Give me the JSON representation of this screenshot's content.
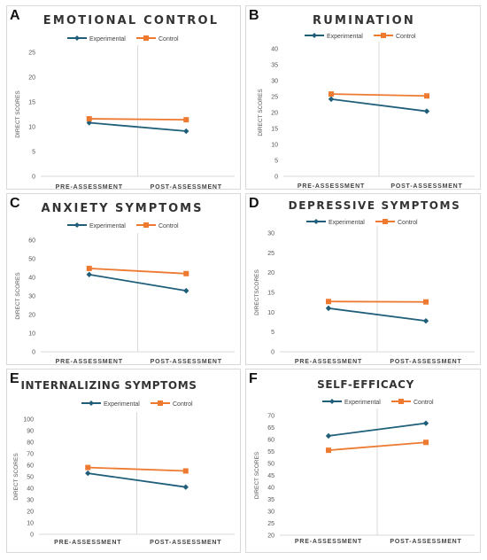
{
  "legend_labels": {
    "experimental": "Experimental",
    "control": "Control"
  },
  "colors": {
    "experimental": "#1f5f7a",
    "control": "#ee7a32",
    "axis_text": "#555555",
    "gridline": "#d9d9d9"
  },
  "panels": [
    {
      "letter": "A"
    },
    {
      "letter": "B"
    },
    {
      "letter": "C"
    },
    {
      "letter": "D"
    },
    {
      "letter": "E"
    },
    {
      "letter": "F"
    }
  ],
  "chart_data": [
    {
      "type": "line",
      "title": "EMOTIONAL CONTROL",
      "ylabel": "DIRECT SCORES",
      "categories": [
        "PRE-ASSESSMENT",
        "POST-ASSESSMENT"
      ],
      "ylim": [
        0,
        25
      ],
      "yticks": [
        "0",
        "5",
        "10",
        "15",
        "20",
        "25"
      ],
      "series": [
        {
          "name": "Experimental",
          "values": [
            10.8,
            9.1
          ]
        },
        {
          "name": "Control",
          "values": [
            11.6,
            11.4
          ]
        }
      ]
    },
    {
      "type": "line",
      "title": "RUMINATION",
      "ylabel": "DIRECT SCORES",
      "categories": [
        "PRE-ASSESSMENT",
        "POST-ASSESSMENT"
      ],
      "ylim": [
        0,
        40
      ],
      "yticks": [
        "0",
        "5",
        "10",
        "15",
        "20",
        "25",
        "30",
        "35",
        "40"
      ],
      "series": [
        {
          "name": "Experimental",
          "values": [
            24.2,
            20.4
          ]
        },
        {
          "name": "Control",
          "values": [
            25.8,
            25.2
          ]
        }
      ]
    },
    {
      "type": "line",
      "title": "ANXIETY SYMPTOMS",
      "ylabel": "DIRECT SCORES",
      "categories": [
        "PRE-ASSESSMENT",
        "POST-ASSESSMENT"
      ],
      "ylim": [
        0,
        60
      ],
      "yticks": [
        "0",
        "10",
        "20",
        "30",
        "40",
        "50",
        "60"
      ],
      "series": [
        {
          "name": "Experimental",
          "values": [
            41.5,
            32.8
          ]
        },
        {
          "name": "Control",
          "values": [
            44.8,
            42.0
          ]
        }
      ]
    },
    {
      "type": "line",
      "title": "DEPRESSIVE SYMPTOMS",
      "ylabel": "DIRECTSCORES",
      "categories": [
        "PRE-ASSESSMENT",
        "POST-ASSESSMENT"
      ],
      "ylim": [
        0,
        30
      ],
      "yticks": [
        "0",
        "5",
        "10",
        "15",
        "20",
        "25",
        "30"
      ],
      "series": [
        {
          "name": "Experimental",
          "values": [
            11.0,
            7.8
          ]
        },
        {
          "name": "Control",
          "values": [
            12.7,
            12.6
          ]
        }
      ]
    },
    {
      "type": "line",
      "title": "INTERNALIZING SYMPTOMS",
      "ylabel": "DIRECT SCORES",
      "categories": [
        "PRE-ASSESSMENT",
        "POST-ASSESSMENT"
      ],
      "ylim": [
        0,
        100
      ],
      "yticks": [
        "0",
        "10",
        "20",
        "30",
        "40",
        "50",
        "60",
        "70",
        "80",
        "90",
        "100"
      ],
      "series": [
        {
          "name": "Experimental",
          "values": [
            53.0,
            41.0
          ]
        },
        {
          "name": "Control",
          "values": [
            58.0,
            55.0
          ]
        }
      ]
    },
    {
      "type": "line",
      "title": "SELF-EFFICACY",
      "ylabel": "DIRECT SCORES",
      "categories": [
        "PRE-ASSESSMENT",
        "POST-ASSESSMENT"
      ],
      "ylim": [
        20,
        70
      ],
      "yticks": [
        "20",
        "25",
        "30",
        "35",
        "40",
        "45",
        "50",
        "55",
        "60",
        "65",
        "70"
      ],
      "series": [
        {
          "name": "Experimental",
          "values": [
            61.5,
            66.8
          ]
        },
        {
          "name": "Control",
          "values": [
            55.5,
            58.8
          ]
        }
      ]
    }
  ]
}
